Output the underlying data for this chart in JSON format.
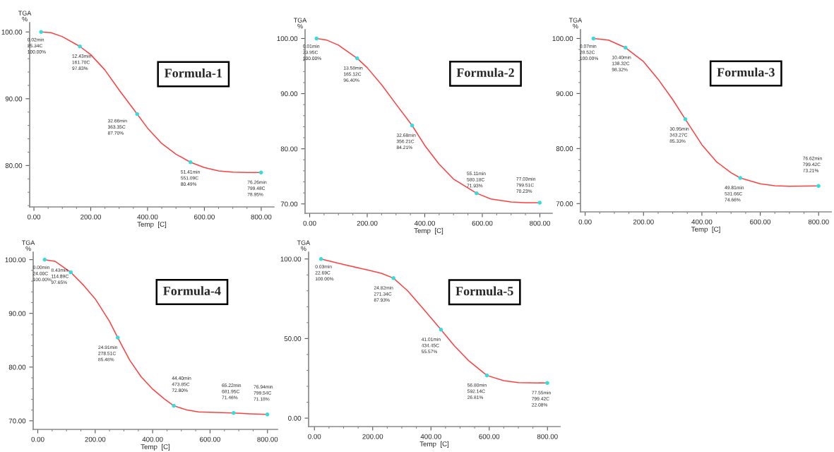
{
  "chart_data": [
    {
      "type": "line",
      "title": "Formula-1",
      "xlabel": "Temp  [C]",
      "ylabel": "TGA\n%",
      "xlim": [
        -15,
        845
      ],
      "ylim": [
        73.8,
        101.4
      ],
      "xticks": [
        {
          "value": 0,
          "label": "0.00"
        },
        {
          "value": 50,
          "label": null
        },
        {
          "value": 100,
          "label": null
        },
        {
          "value": 150,
          "label": null
        },
        {
          "value": 200,
          "label": "200.00"
        },
        {
          "value": 250,
          "label": null
        },
        {
          "value": 300,
          "label": null
        },
        {
          "value": 350,
          "label": null
        },
        {
          "value": 400,
          "label": "400.00"
        },
        {
          "value": 450,
          "label": null
        },
        {
          "value": 500,
          "label": null
        },
        {
          "value": 550,
          "label": null
        },
        {
          "value": 600,
          "label": "600.00"
        },
        {
          "value": 650,
          "label": null
        },
        {
          "value": 700,
          "label": null
        },
        {
          "value": 750,
          "label": null
        },
        {
          "value": 800,
          "label": "800.00"
        }
      ],
      "yticks": [
        {
          "value": 74,
          "label": null
        },
        {
          "value": 76,
          "label": null
        },
        {
          "value": 78,
          "label": null
        },
        {
          "value": 80,
          "label": "80.00"
        },
        {
          "value": 82,
          "label": null
        },
        {
          "value": 84,
          "label": null
        },
        {
          "value": 86,
          "label": null
        },
        {
          "value": 88,
          "label": null
        },
        {
          "value": 90,
          "label": "90.00"
        },
        {
          "value": 92,
          "label": null
        },
        {
          "value": 94,
          "label": null
        },
        {
          "value": 96,
          "label": null
        },
        {
          "value": 98,
          "label": null
        },
        {
          "value": 100,
          "label": "100.00"
        }
      ],
      "series": [
        {
          "type": "line",
          "color": "#ff4040",
          "x": [
            25.34,
            60,
            100,
            161.7,
            200,
            250,
            300,
            363.35,
            400,
            450,
            500,
            551.09,
            600,
            650,
            700,
            750,
            799.48
          ],
          "values": [
            100,
            99.9,
            99.3,
            97.83,
            96.6,
            94.3,
            91.3,
            87.7,
            85.6,
            83.3,
            81.7,
            80.49,
            79.7,
            79.2,
            79.0,
            78.95,
            78.95
          ]
        },
        {
          "type": "scatter",
          "color": "#33dddd",
          "marker": "circle",
          "x": [
            25.34,
            161.7,
            363.35,
            551.09,
            799.48
          ],
          "values": [
            100,
            97.83,
            87.7,
            80.49,
            78.95
          ]
        }
      ],
      "annotations": [
        {
          "text": "0.02min\n25.34C\n100.00%",
          "x": 25.34,
          "y": 100
        },
        {
          "text": "12.43min\n161.70C\n97.83%",
          "x": 161.7,
          "y": 97.83
        },
        {
          "text": "32.66min\n363.35C\n87.70%",
          "x": 363.35,
          "y": 87.7
        },
        {
          "text": "51.41min\n551.09C\n80.49%",
          "x": 551.09,
          "y": 80.49
        },
        {
          "text": "76.26min\n799.48C\n78.95%",
          "x": 799.48,
          "y": 78.95
        }
      ]
    },
    {
      "type": "line",
      "title": "Formula-2",
      "xlabel": "Temp  [C]",
      "ylabel": "TGA\n%",
      "xlim": [
        -16,
        843
      ],
      "ylim": [
        68.3,
        101.6
      ],
      "xticks": [
        {
          "value": 0,
          "label": "0.00"
        },
        {
          "value": 50,
          "label": null
        },
        {
          "value": 100,
          "label": null
        },
        {
          "value": 150,
          "label": null
        },
        {
          "value": 200,
          "label": "200.00"
        },
        {
          "value": 250,
          "label": null
        },
        {
          "value": 300,
          "label": null
        },
        {
          "value": 350,
          "label": null
        },
        {
          "value": 400,
          "label": "400.00"
        },
        {
          "value": 450,
          "label": null
        },
        {
          "value": 500,
          "label": null
        },
        {
          "value": 550,
          "label": null
        },
        {
          "value": 600,
          "label": "600.00"
        },
        {
          "value": 650,
          "label": null
        },
        {
          "value": 700,
          "label": null
        },
        {
          "value": 750,
          "label": null
        },
        {
          "value": 800,
          "label": "800.00"
        }
      ],
      "yticks": [
        {
          "value": 70,
          "label": "70.00"
        },
        {
          "value": 72,
          "label": null
        },
        {
          "value": 74,
          "label": null
        },
        {
          "value": 76,
          "label": null
        },
        {
          "value": 78,
          "label": null
        },
        {
          "value": 80,
          "label": "80.00"
        },
        {
          "value": 82,
          "label": null
        },
        {
          "value": 84,
          "label": null
        },
        {
          "value": 86,
          "label": null
        },
        {
          "value": 88,
          "label": null
        },
        {
          "value": 90,
          "label": "90.00"
        },
        {
          "value": 92,
          "label": null
        },
        {
          "value": 94,
          "label": null
        },
        {
          "value": 96,
          "label": null
        },
        {
          "value": 98,
          "label": null
        },
        {
          "value": 100,
          "label": "100.00"
        }
      ],
      "series": [
        {
          "type": "line",
          "color": "#ff4040",
          "x": [
            23.95,
            60,
            100,
            165.12,
            200,
            250,
            300,
            356.21,
            400,
            450,
            500,
            580.18,
            630,
            700,
            750,
            799.51
          ],
          "values": [
            100,
            99.7,
            98.8,
            96.4,
            94.7,
            91.6,
            88.1,
            84.21,
            80.6,
            77.2,
            74.5,
            71.93,
            70.9,
            70.35,
            70.23,
            70.23
          ]
        },
        {
          "type": "scatter",
          "color": "#33dddd",
          "marker": "circle",
          "x": [
            23.95,
            165.12,
            356.21,
            580.18,
            799.51
          ],
          "values": [
            100,
            96.4,
            84.21,
            71.93,
            70.23
          ]
        }
      ],
      "annotations": [
        {
          "text": "0.01min\n23.95C\n100.00%",
          "x": 23.95,
          "y": 100
        },
        {
          "text": "13.58min\n165.12C\n96.40%",
          "x": 165.12,
          "y": 96.4
        },
        {
          "text": "32.68min\n356.21C\n84.21%",
          "x": 356.21,
          "y": 84.21
        },
        {
          "text": "55.11min\n580.18C\n71.93%",
          "x": 580.18,
          "y": 71.93
        },
        {
          "text": "77.03min\n799.51C\n70.23%",
          "x": 799.51,
          "y": 70.23
        }
      ]
    },
    {
      "type": "line",
      "title": "Formula-3",
      "xlabel": "Temp  [C]",
      "ylabel": "TGA\n%",
      "xlim": [
        -16,
        843
      ],
      "ylim": [
        68.5,
        101.6
      ],
      "xticks": [
        {
          "value": 0,
          "label": "0.00"
        },
        {
          "value": 50,
          "label": null
        },
        {
          "value": 100,
          "label": null
        },
        {
          "value": 150,
          "label": null
        },
        {
          "value": 200,
          "label": "200.00"
        },
        {
          "value": 250,
          "label": null
        },
        {
          "value": 300,
          "label": null
        },
        {
          "value": 350,
          "label": null
        },
        {
          "value": 400,
          "label": "400.00"
        },
        {
          "value": 450,
          "label": null
        },
        {
          "value": 500,
          "label": null
        },
        {
          "value": 550,
          "label": null
        },
        {
          "value": 600,
          "label": "600.00"
        },
        {
          "value": 650,
          "label": null
        },
        {
          "value": 700,
          "label": null
        },
        {
          "value": 750,
          "label": null
        },
        {
          "value": 800,
          "label": "800.00"
        }
      ],
      "yticks": [
        {
          "value": 70,
          "label": "70.00"
        },
        {
          "value": 72,
          "label": null
        },
        {
          "value": 74,
          "label": null
        },
        {
          "value": 76,
          "label": null
        },
        {
          "value": 78,
          "label": null
        },
        {
          "value": 80,
          "label": "80.00"
        },
        {
          "value": 82,
          "label": null
        },
        {
          "value": 84,
          "label": null
        },
        {
          "value": 86,
          "label": null
        },
        {
          "value": 88,
          "label": null
        },
        {
          "value": 90,
          "label": "90.00"
        },
        {
          "value": 92,
          "label": null
        },
        {
          "value": 94,
          "label": null
        },
        {
          "value": 96,
          "label": null
        },
        {
          "value": 98,
          "label": null
        },
        {
          "value": 100,
          "label": "100.00"
        }
      ],
      "series": [
        {
          "type": "line",
          "color": "#ff4040",
          "x": [
            28.52,
            80,
            138.32,
            200,
            250,
            300,
            343.27,
            400,
            450,
            500,
            531.66,
            600,
            650,
            700,
            799.42
          ],
          "values": [
            100,
            99.7,
            98.32,
            95.8,
            92.6,
            88.9,
            85.33,
            80.7,
            77.6,
            75.6,
            74.66,
            73.6,
            73.25,
            73.15,
            73.21
          ]
        },
        {
          "type": "scatter",
          "color": "#33dddd",
          "marker": "circle",
          "x": [
            28.52,
            138.32,
            343.27,
            531.66,
            799.42
          ],
          "values": [
            100,
            98.32,
            85.33,
            74.66,
            73.21
          ]
        }
      ],
      "annotations": [
        {
          "text": "0.07min\n28.52C\n100.00%",
          "x": 28.52,
          "y": 100
        },
        {
          "text": "10.40min\n138.32C\n98.32%",
          "x": 138.32,
          "y": 98.32
        },
        {
          "text": "30.95min\n343.27C\n85.33%",
          "x": 343.27,
          "y": 85.33
        },
        {
          "text": "49.81min\n531.66C\n74.66%",
          "x": 531.66,
          "y": 74.66
        },
        {
          "text": "76.62min\n799.42C\n73.21%",
          "x": 799.42,
          "y": 73.21
        }
      ]
    },
    {
      "type": "line",
      "title": "Formula-4",
      "xlabel": "Temp  [C]",
      "ylabel": "TGA\n%",
      "xlim": [
        -16,
        835
      ],
      "ylim": [
        68.4,
        101.4
      ],
      "xticks": [
        {
          "value": 0,
          "label": "0.00"
        },
        {
          "value": 50,
          "label": null
        },
        {
          "value": 100,
          "label": null
        },
        {
          "value": 150,
          "label": null
        },
        {
          "value": 200,
          "label": "200.00"
        },
        {
          "value": 250,
          "label": null
        },
        {
          "value": 300,
          "label": null
        },
        {
          "value": 350,
          "label": null
        },
        {
          "value": 400,
          "label": "400.00"
        },
        {
          "value": 450,
          "label": null
        },
        {
          "value": 500,
          "label": null
        },
        {
          "value": 550,
          "label": null
        },
        {
          "value": 600,
          "label": "600.00"
        },
        {
          "value": 650,
          "label": null
        },
        {
          "value": 700,
          "label": null
        },
        {
          "value": 750,
          "label": null
        },
        {
          "value": 800,
          "label": "800.00"
        }
      ],
      "yticks": [
        {
          "value": 70,
          "label": "70.00"
        },
        {
          "value": 72,
          "label": null
        },
        {
          "value": 74,
          "label": null
        },
        {
          "value": 76,
          "label": null
        },
        {
          "value": 78,
          "label": null
        },
        {
          "value": 80,
          "label": "80.00"
        },
        {
          "value": 82,
          "label": null
        },
        {
          "value": 84,
          "label": null
        },
        {
          "value": 86,
          "label": null
        },
        {
          "value": 88,
          "label": null
        },
        {
          "value": 90,
          "label": "90.00"
        },
        {
          "value": 92,
          "label": null
        },
        {
          "value": 94,
          "label": null
        },
        {
          "value": 96,
          "label": null
        },
        {
          "value": 98,
          "label": null
        },
        {
          "value": 100,
          "label": "100.00"
        }
      ],
      "series": [
        {
          "type": "line",
          "color": "#ff4040",
          "x": [
            24,
            60,
            114.89,
            160,
            200,
            250,
            278.51,
            320,
            360,
            400,
            440,
            473.85,
            520,
            560,
            620,
            681.95,
            740,
            799.54
          ],
          "values": [
            100,
            99.7,
            97.65,
            95.2,
            92.7,
            88.5,
            85.48,
            81.3,
            78.2,
            75.9,
            74.1,
            72.8,
            72,
            71.65,
            71.55,
            71.46,
            71.3,
            71.18
          ]
        },
        {
          "type": "scatter",
          "color": "#33dddd",
          "marker": "circle",
          "x": [
            24,
            114.89,
            278.51,
            473.85,
            681.95,
            799.54
          ],
          "values": [
            100,
            97.65,
            85.48,
            72.8,
            71.46,
            71.18
          ]
        }
      ],
      "annotations": [
        {
          "text": "0.00min\n24.00C\n100.00%",
          "x": 24,
          "y": 100
        },
        {
          "text": "8.43min\n114.89C\n97.65%",
          "x": 114.89,
          "y": 97.65
        },
        {
          "text": "24.91min\n278.51C\n85.48%",
          "x": 278.51,
          "y": 85.48
        },
        {
          "text": "44.40min\n473.85C\n72.80%",
          "x": 473.85,
          "y": 72.8
        },
        {
          "text": "65.22min\n681.95C\n71.46%",
          "x": 681.95,
          "y": 71.46
        },
        {
          "text": "76.94min\n799.54C\n71.18%",
          "x": 799.54,
          "y": 71.18
        }
      ]
    },
    {
      "type": "line",
      "title": "Formula-5",
      "xlabel": "Temp  [C]",
      "ylabel": "TGA\n%",
      "xlim": [
        -20,
        843
      ],
      "ylim": [
        -5.3,
        104.3
      ],
      "xticks": [
        {
          "value": 0,
          "label": "0.00"
        },
        {
          "value": 50,
          "label": null
        },
        {
          "value": 100,
          "label": null
        },
        {
          "value": 150,
          "label": null
        },
        {
          "value": 200,
          "label": "200.00"
        },
        {
          "value": 250,
          "label": null
        },
        {
          "value": 300,
          "label": null
        },
        {
          "value": 350,
          "label": null
        },
        {
          "value": 400,
          "label": "400.00"
        },
        {
          "value": 450,
          "label": null
        },
        {
          "value": 500,
          "label": null
        },
        {
          "value": 550,
          "label": null
        },
        {
          "value": 600,
          "label": "600.00"
        },
        {
          "value": 650,
          "label": null
        },
        {
          "value": 700,
          "label": null
        },
        {
          "value": 750,
          "label": null
        },
        {
          "value": 800,
          "label": "800.00"
        }
      ],
      "yticks": [
        {
          "value": 0,
          "label": "0.00"
        },
        {
          "value": 10,
          "label": null
        },
        {
          "value": 20,
          "label": null
        },
        {
          "value": 30,
          "label": null
        },
        {
          "value": 40,
          "label": null
        },
        {
          "value": 50,
          "label": "50.00"
        },
        {
          "value": 60,
          "label": null
        },
        {
          "value": 70,
          "label": null
        },
        {
          "value": 80,
          "label": null
        },
        {
          "value": 90,
          "label": null
        },
        {
          "value": 100,
          "label": "100.00"
        }
      ],
      "series": [
        {
          "type": "line",
          "color": "#ff4040",
          "x": [
            22.69,
            100,
            180,
            230,
            271.34,
            320,
            370,
            434.45,
            480,
            530,
            592.14,
            650,
            700,
            799.42
          ],
          "values": [
            100,
            96.5,
            93.2,
            91,
            87.93,
            80,
            69.5,
            55.57,
            45.5,
            36,
            26.81,
            23.5,
            22.3,
            22.08
          ]
        },
        {
          "type": "scatter",
          "color": "#33dddd",
          "marker": "circle",
          "x": [
            22.69,
            271.34,
            434.45,
            592.14,
            799.42
          ],
          "values": [
            100,
            87.93,
            55.57,
            26.81,
            22.08
          ]
        }
      ],
      "annotations": [
        {
          "text": "0.03min\n22.69C\n100.00%",
          "x": 22.69,
          "y": 100
        },
        {
          "text": "24.82min\n271.34C\n87.93%",
          "x": 271.34,
          "y": 87.93
        },
        {
          "text": "41.01min\n434.45C\n55.57%",
          "x": 434.45,
          "y": 55.57
        },
        {
          "text": "56.80min\n592.14C\n26.81%",
          "x": 592.14,
          "y": 26.81
        },
        {
          "text": "77.55min\n799.42C\n22.08%",
          "x": 799.42,
          "y": 22.08
        }
      ]
    }
  ]
}
